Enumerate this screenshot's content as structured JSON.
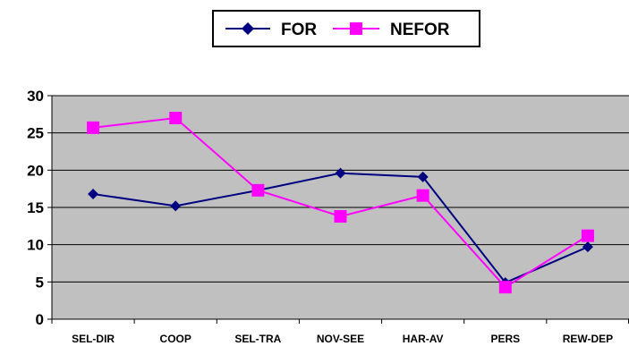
{
  "chart_data": {
    "type": "line",
    "categories": [
      "SEL-DIR",
      "COOP",
      "SEL-TRA",
      "NOV-SEE",
      "HAR-AV",
      "PERS",
      "REW-DEP"
    ],
    "series": [
      {
        "name": "FOR",
        "values": [
          16.8,
          15.2,
          17.3,
          19.6,
          19.1,
          4.9,
          9.7
        ],
        "color": "#000080",
        "marker": "diamond"
      },
      {
        "name": "NEFOR",
        "values": [
          25.7,
          27.0,
          17.3,
          13.8,
          16.6,
          4.3,
          11.2
        ],
        "color": "#ff00ff",
        "marker": "square"
      }
    ],
    "yticks": [
      "0",
      "5",
      "10",
      "15",
      "20",
      "25",
      "30"
    ],
    "ylim": [
      0,
      30
    ],
    "title": "",
    "xlabel": "",
    "ylabel": "",
    "grid": true,
    "legend_position": "top-center",
    "plot_background": "#c0c0c0"
  }
}
